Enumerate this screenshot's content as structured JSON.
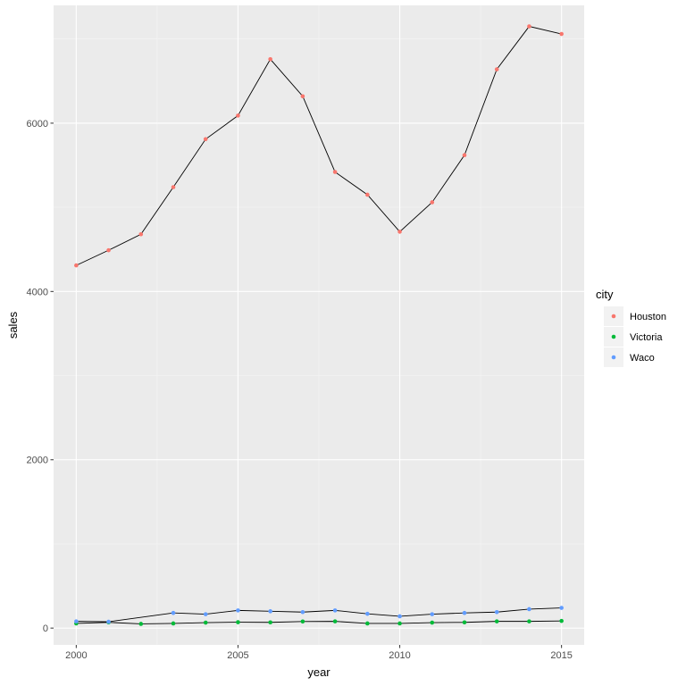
{
  "chart_data": {
    "type": "line",
    "xlabel": "year",
    "ylabel": "sales",
    "xlim": [
      1999.3,
      2015.7
    ],
    "ylim": [
      -200,
      7400
    ],
    "x_ticks": [
      2000,
      2005,
      2010,
      2015
    ],
    "x_tick_labels": [
      "2000",
      "2005",
      "2010",
      "2015"
    ],
    "y_ticks": [
      0,
      2000,
      4000,
      6000
    ],
    "y_tick_labels": [
      "0",
      "2000",
      "4000",
      "6000"
    ],
    "grid": true,
    "legend": {
      "title": "city",
      "position": "right"
    },
    "panel_background": "#ebebeb",
    "line_color": "#000000",
    "series": [
      {
        "name": "Houston",
        "color": "#F8766D",
        "x": [
          2000,
          2001,
          2002,
          2003,
          2004,
          2005,
          2006,
          2007,
          2008,
          2009,
          2010,
          2011,
          2012,
          2013,
          2014,
          2015
        ],
        "values": [
          4310,
          4490,
          4680,
          5240,
          5810,
          6090,
          6760,
          6320,
          5420,
          5150,
          4710,
          5060,
          5620,
          6640,
          7150,
          7060
        ]
      },
      {
        "name": "Victoria",
        "color": "#00BA38",
        "x": [
          2000,
          2001,
          2002,
          2003,
          2004,
          2005,
          2006,
          2007,
          2008,
          2009,
          2010,
          2011,
          2012,
          2013,
          2014,
          2015
        ],
        "values": [
          55,
          68,
          50,
          55,
          65,
          70,
          68,
          78,
          80,
          55,
          55,
          65,
          68,
          80,
          80,
          85
        ]
      },
      {
        "name": "Waco",
        "color": "#619CFF",
        "x": [
          2000,
          2001,
          2003,
          2004,
          2005,
          2006,
          2007,
          2008,
          2009,
          2010,
          2011,
          2012,
          2013,
          2014,
          2015
        ],
        "values": [
          80,
          75,
          180,
          165,
          210,
          200,
          190,
          210,
          170,
          140,
          165,
          180,
          190,
          225,
          240
        ]
      }
    ]
  }
}
